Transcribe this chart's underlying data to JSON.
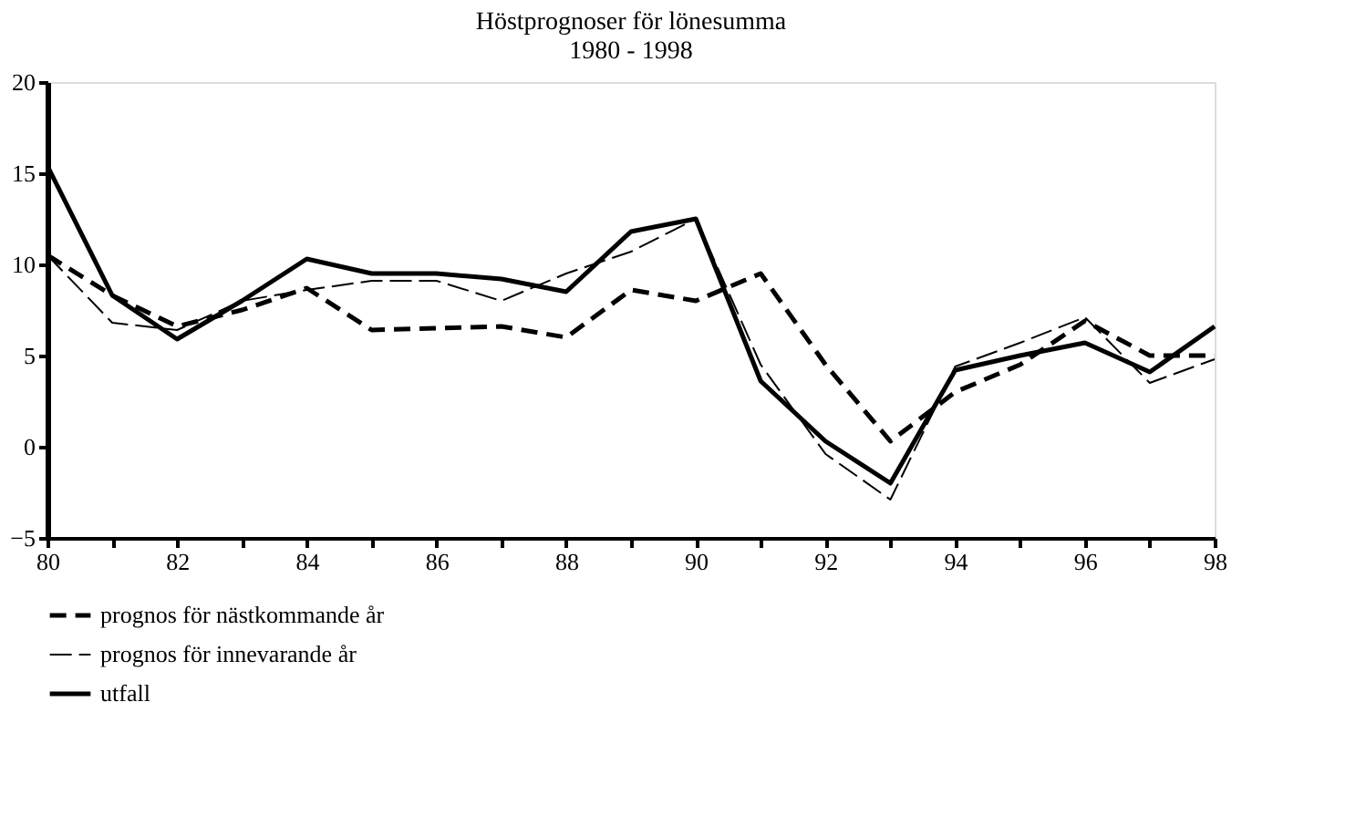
{
  "chart_data": {
    "type": "line",
    "title": [
      "Höstprognoser för lönesumma",
      "1980 - 1998"
    ],
    "categories": [
      "80",
      null,
      "82",
      null,
      "84",
      null,
      "86",
      null,
      "88",
      null,
      "90",
      null,
      "92",
      null,
      "94",
      null,
      "96",
      null,
      "98"
    ],
    "series": [
      {
        "name": "prognos för nästkommande år",
        "color": "#000000",
        "line_style": "dashed",
        "values": [
          10.5,
          8.3,
          6.6,
          7.5,
          8.7,
          6.4,
          6.5,
          6.6,
          6.0,
          8.6,
          8.0,
          9.5,
          4.5,
          0.3,
          3.0,
          4.5,
          6.9,
          5.0,
          5.0
        ]
      },
      {
        "name": "prognos för innevarande år",
        "color": "#000000",
        "line_style": "dashed",
        "values": [
          10.5,
          6.8,
          6.4,
          8.0,
          8.6,
          9.1,
          9.1,
          8.0,
          9.5,
          10.7,
          12.5,
          4.5,
          -0.4,
          -2.9,
          4.4,
          5.7,
          7.1,
          3.5,
          4.8
        ]
      },
      {
        "name": "utfall",
        "color": "#000000",
        "line_style": "solid",
        "values": [
          15.4,
          8.3,
          5.9,
          8.0,
          10.3,
          9.5,
          9.5,
          9.2,
          8.5,
          11.8,
          12.5,
          3.6,
          0.3,
          -2.0,
          4.2,
          5.0,
          5.7,
          4.1,
          6.6
        ]
      }
    ],
    "ylim": [
      -5,
      20
    ],
    "yticks": [
      -5,
      0,
      5,
      10,
      15,
      20
    ],
    "grid": false,
    "legend": "bottom left"
  }
}
